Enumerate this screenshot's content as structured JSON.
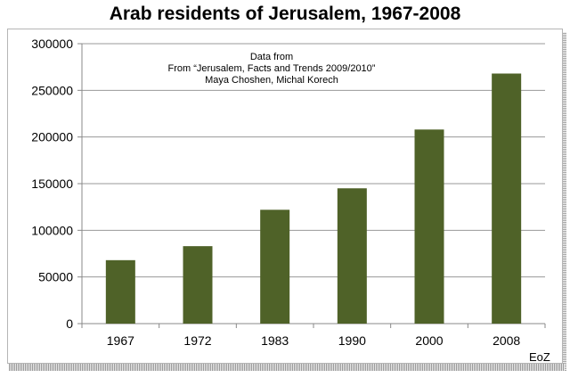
{
  "chart_data": {
    "type": "bar",
    "title": "Arab residents of Jerusalem, 1967-2008",
    "categories": [
      "1967",
      "1972",
      "1983",
      "1990",
      "2000",
      "2008"
    ],
    "values": [
      68000,
      83000,
      122000,
      145000,
      208000,
      268000
    ],
    "ylim": [
      0,
      300000
    ],
    "yticks": [
      "0",
      "50000",
      "100000",
      "150000",
      "200000",
      "250000",
      "300000"
    ],
    "xlabel": "",
    "ylabel": "",
    "grid": true,
    "legend": "none",
    "bar_color": "#4f6228",
    "annotation": [
      "Data from",
      "From “Jerusalem, Facts and Trends 2009/2010”",
      "Maya Choshen, Michal Korech"
    ],
    "credit": "EoZ"
  }
}
